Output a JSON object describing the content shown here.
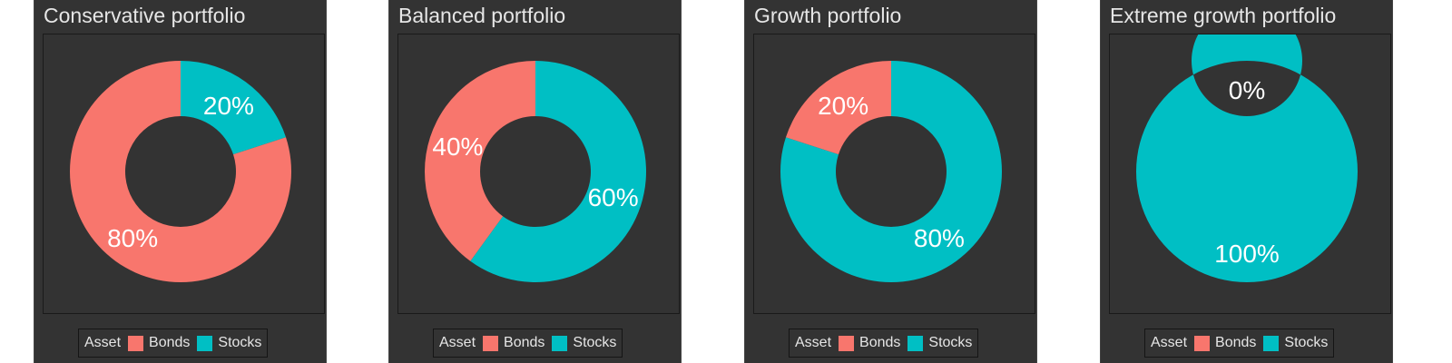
{
  "chart_data": [
    {
      "type": "pie",
      "title": "Conservative portfolio",
      "categories": [
        "Bonds",
        "Stocks"
      ],
      "values": [
        80,
        20
      ],
      "labels": [
        "80%",
        "20%"
      ]
    },
    {
      "type": "pie",
      "title": "Balanced portfolio",
      "categories": [
        "Bonds",
        "Stocks"
      ],
      "values": [
        40,
        60
      ],
      "labels": [
        "40%",
        "60%"
      ]
    },
    {
      "type": "pie",
      "title": "Growth portfolio",
      "categories": [
        "Bonds",
        "Stocks"
      ],
      "values": [
        20,
        80
      ],
      "labels": [
        "20%",
        "80%"
      ]
    },
    {
      "type": "pie",
      "title": "Extreme growth portfolio",
      "categories": [
        "Bonds",
        "Stocks"
      ],
      "values": [
        0,
        100
      ],
      "labels": [
        "0%",
        "100%"
      ]
    }
  ],
  "legend": {
    "title": "Asset",
    "items": [
      "Bonds",
      "Stocks"
    ],
    "placement": "bottom"
  },
  "colors": {
    "Bonds": "#F8766D",
    "Stocks": "#00BFC4",
    "background": "#333333"
  },
  "style": "donut"
}
